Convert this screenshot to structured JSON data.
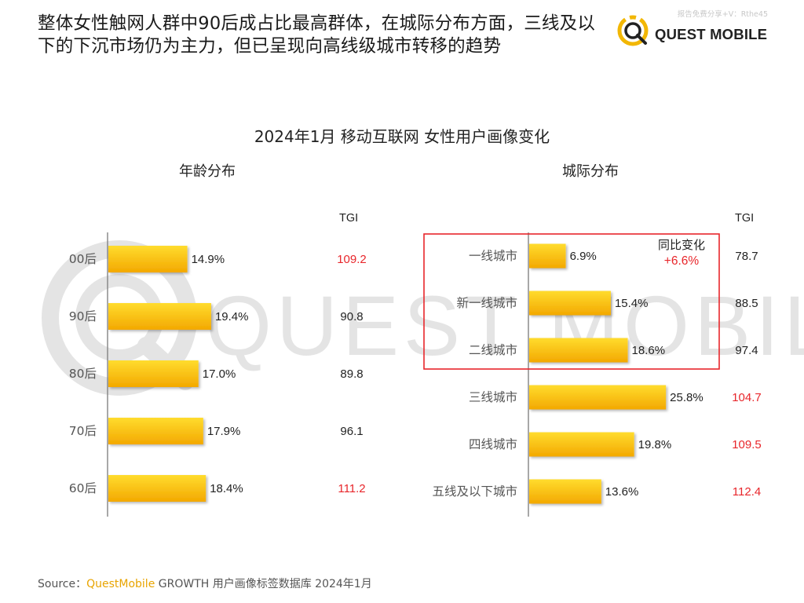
{
  "headline": "整体女性触网人群中90后成占比最高群体，在城际分布方面，三线及以下的下沉市场仍为主力，但已呈现向高线级城市转移的趋势",
  "watermark_top": "报告免费分享+V：Rthe45",
  "logo": {
    "text": "QUEST MOBILE",
    "color": "#f2b705",
    "dark": "#222222"
  },
  "background_watermark": "QUEST MOBILE",
  "chart_title": "2024年1月 移动互联网 女性用户画像变化",
  "source": {
    "prefix": "Source：",
    "brand": "QuestMobile",
    "suffix": " GROWTH 用户画像标签数据库 2024年1月"
  },
  "colors": {
    "bar_light": "#ffd21f",
    "bar_dark": "#f2a900",
    "highlight": "#e8262b",
    "tgi_normal": "#222222"
  },
  "chart_data": [
    {
      "type": "bar",
      "orientation": "horizontal",
      "title": "年龄分布",
      "tgi_label": "TGI",
      "categories": [
        "00后",
        "90后",
        "80后",
        "70后",
        "60后"
      ],
      "values": [
        14.9,
        19.4,
        17.0,
        17.9,
        18.4
      ],
      "value_labels": [
        "14.9%",
        "19.4%",
        "17.0%",
        "17.9%",
        "18.4%"
      ],
      "tgi": [
        "109.2",
        "90.8",
        "89.8",
        "96.1",
        "111.2"
      ],
      "tgi_highlight": [
        true,
        false,
        false,
        false,
        true
      ],
      "unit": "%"
    },
    {
      "type": "bar",
      "orientation": "horizontal",
      "title": "城际分布",
      "tgi_label": "TGI",
      "categories": [
        "一线城市",
        "新一线城市",
        "二线城市",
        "三线城市",
        "四线城市",
        "五线及以下城市"
      ],
      "values": [
        6.9,
        15.4,
        18.6,
        25.8,
        19.8,
        13.6
      ],
      "value_labels": [
        "6.9%",
        "15.4%",
        "18.6%",
        "25.8%",
        "19.8%",
        "13.6%"
      ],
      "tgi": [
        "78.7",
        "88.5",
        "97.4",
        "104.7",
        "109.5",
        "112.4"
      ],
      "tgi_highlight": [
        false,
        false,
        false,
        true,
        true,
        true
      ],
      "unit": "%",
      "annotation": {
        "label": "同比变化",
        "value": "+6.6%",
        "spans": [
          0,
          2
        ]
      }
    }
  ]
}
